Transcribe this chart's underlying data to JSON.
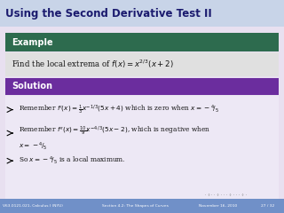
{
  "title": "Using the Second Derivative Test II",
  "title_color": "#1a1a6e",
  "bg_color": "#c8d4e8",
  "main_bg": "#e8e0f0",
  "example_header": "Example",
  "example_header_bg": "#2d6b4e",
  "example_header_color": "#ffffff",
  "example_body_bg": "#e0e0e0",
  "solution_header": "Solution",
  "solution_header_bg": "#6b2d9e",
  "solution_header_color": "#ffffff",
  "solution_bg": "#ede8f5",
  "footer_left": "V63.0121.021, Calculus I (NYU)",
  "footer_mid": "Section 4.2: The Shapes of Curves",
  "footer_right": "November 16, 2010",
  "footer_page": "27 / 32",
  "footer_bg": "#7090c8",
  "footer_color": "#ffffff"
}
